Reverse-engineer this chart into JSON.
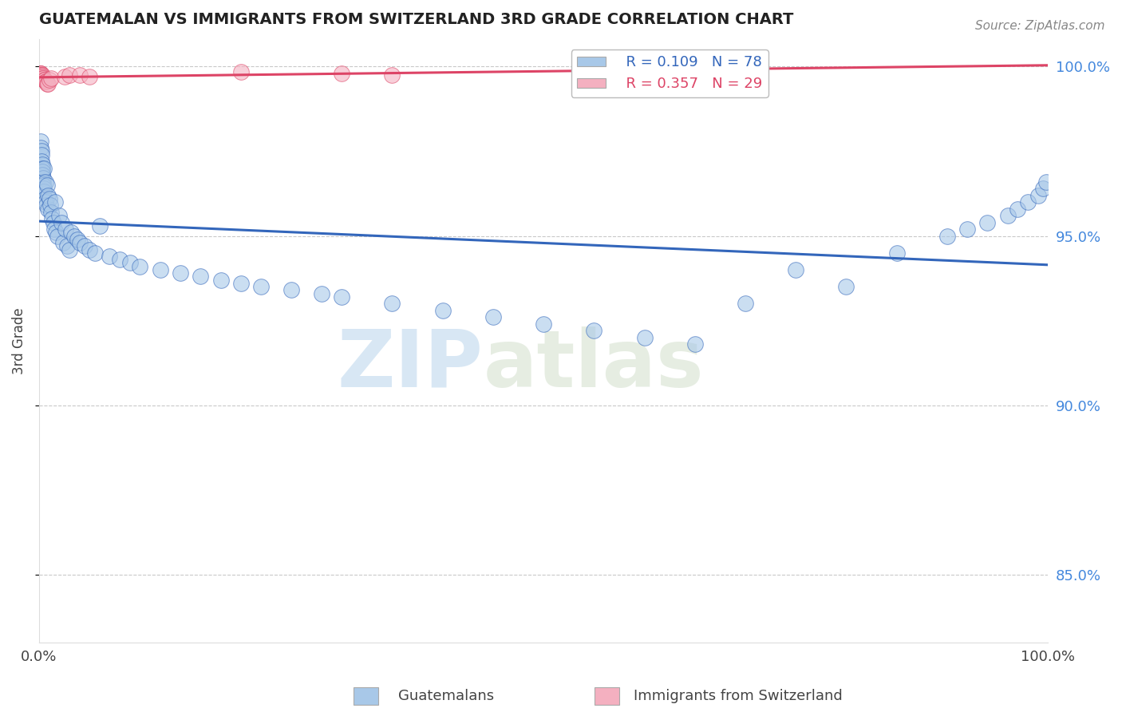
{
  "title": "GUATEMALAN VS IMMIGRANTS FROM SWITZERLAND 3RD GRADE CORRELATION CHART",
  "source_text": "Source: ZipAtlas.com",
  "ylabel": "3rd Grade",
  "legend_label_blue": "Guatemalans",
  "legend_label_pink": "Immigrants from Switzerland",
  "R_blue": 0.109,
  "N_blue": 78,
  "R_pink": 0.357,
  "N_pink": 29,
  "blue_color": "#A8C8E8",
  "pink_color": "#F4B0C0",
  "blue_line_color": "#3366BB",
  "pink_line_color": "#DD4466",
  "watermark_zip": "ZIP",
  "watermark_atlas": "atlas",
  "blue_x": [
    0.15,
    0.18,
    0.2,
    0.22,
    0.25,
    0.28,
    0.3,
    0.32,
    0.35,
    0.38,
    0.4,
    0.42,
    0.45,
    0.48,
    0.5,
    0.55,
    0.6,
    0.65,
    0.7,
    0.8,
    0.85,
    0.9,
    1.0,
    1.1,
    1.2,
    1.3,
    1.4,
    1.5,
    1.6,
    1.7,
    1.8,
    2.0,
    2.2,
    2.4,
    2.6,
    2.8,
    3.0,
    3.2,
    3.5,
    3.8,
    4.0,
    4.5,
    5.0,
    5.5,
    6.0,
    7.0,
    8.0,
    9.0,
    10.0,
    12.0,
    14.0,
    16.0,
    18.0,
    20.0,
    22.0,
    25.0,
    28.0,
    30.0,
    35.0,
    40.0,
    45.0,
    50.0,
    55.0,
    60.0,
    65.0,
    70.0,
    75.0,
    80.0,
    85.0,
    90.0,
    92.0,
    94.0,
    96.0,
    97.0,
    98.0,
    99.0,
    99.5,
    99.8
  ],
  "blue_y": [
    0.978,
    0.976,
    0.975,
    0.974,
    0.972,
    0.971,
    0.97,
    0.969,
    0.968,
    0.967,
    0.966,
    0.965,
    0.964,
    0.963,
    0.97,
    0.961,
    0.96,
    0.966,
    0.959,
    0.965,
    0.958,
    0.962,
    0.961,
    0.959,
    0.957,
    0.955,
    0.954,
    0.952,
    0.96,
    0.951,
    0.95,
    0.956,
    0.954,
    0.948,
    0.952,
    0.947,
    0.946,
    0.951,
    0.95,
    0.949,
    0.948,
    0.947,
    0.946,
    0.945,
    0.953,
    0.944,
    0.943,
    0.942,
    0.941,
    0.94,
    0.939,
    0.938,
    0.937,
    0.936,
    0.935,
    0.934,
    0.933,
    0.932,
    0.93,
    0.928,
    0.926,
    0.924,
    0.922,
    0.92,
    0.918,
    0.93,
    0.94,
    0.935,
    0.945,
    0.95,
    0.952,
    0.954,
    0.956,
    0.958,
    0.96,
    0.962,
    0.964,
    0.966
  ],
  "pink_x": [
    0.1,
    0.12,
    0.14,
    0.15,
    0.16,
    0.17,
    0.18,
    0.2,
    0.22,
    0.25,
    0.28,
    0.3,
    0.35,
    0.4,
    0.5,
    0.55,
    0.6,
    0.7,
    0.8,
    0.9,
    1.0,
    1.2,
    2.5,
    3.0,
    4.0,
    5.0,
    20.0,
    30.0,
    35.0
  ],
  "pink_y": [
    0.998,
    0.998,
    0.9975,
    0.9975,
    0.998,
    0.998,
    0.9975,
    0.9975,
    0.997,
    0.997,
    0.9975,
    0.997,
    0.9965,
    0.9965,
    0.996,
    0.996,
    0.9955,
    0.9955,
    0.995,
    0.995,
    0.996,
    0.9965,
    0.997,
    0.9975,
    0.9975,
    0.997,
    0.9985,
    0.998,
    0.9975
  ],
  "xlim": [
    0.0,
    100.0
  ],
  "ylim": [
    0.83,
    1.008
  ],
  "yticks": [
    0.85,
    0.9,
    0.95,
    1.0
  ],
  "ytick_labels": [
    "85.0%",
    "90.0%",
    "95.0%",
    "100.0%"
  ],
  "xtick_positions": [
    0,
    25,
    50,
    75,
    100
  ],
  "xtick_labels": [
    "0.0%",
    "",
    "",
    "",
    "100.0%"
  ],
  "background_color": "#FFFFFF",
  "grid_color": "#BBBBBB"
}
